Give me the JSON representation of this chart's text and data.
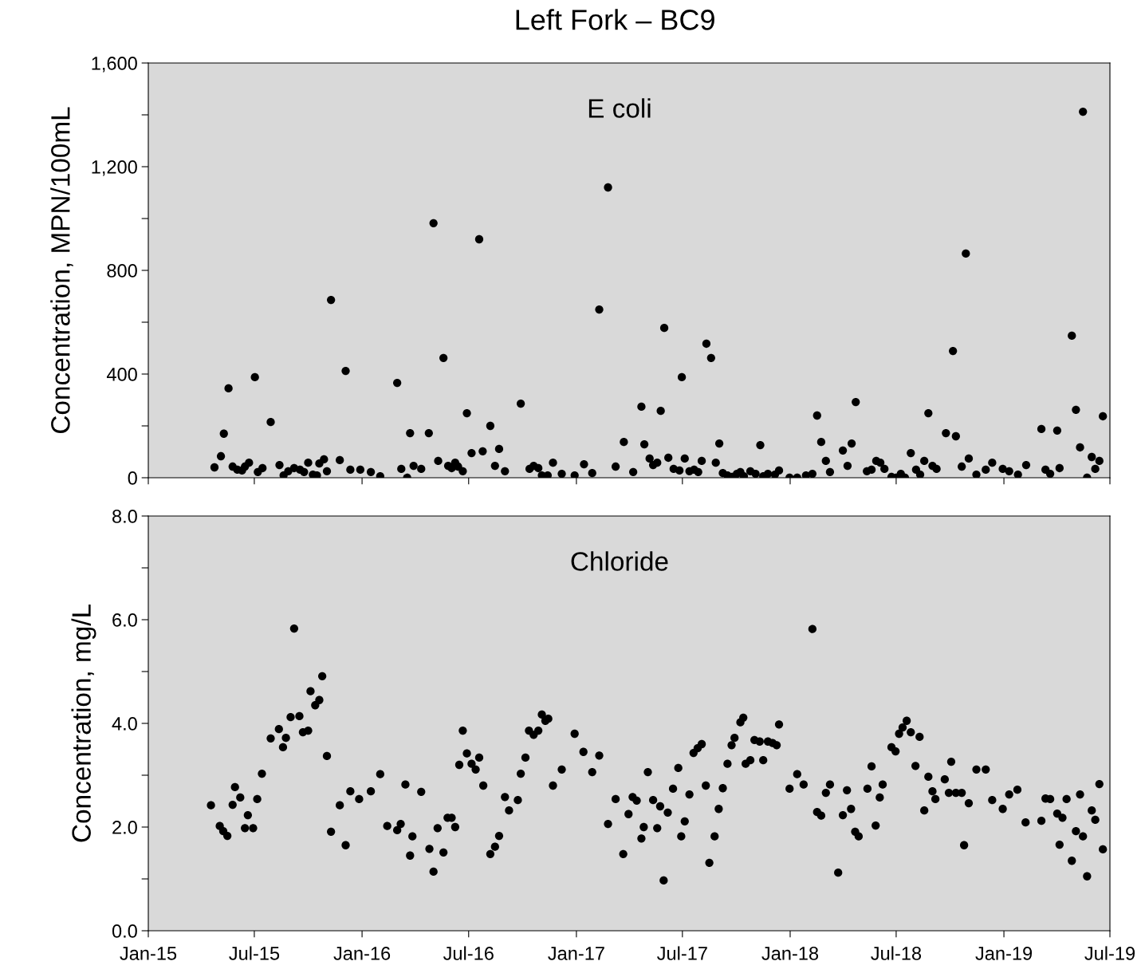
{
  "chart_data": [
    {
      "type": "scatter",
      "title": "Left Fork – BC9",
      "ylabel": "Concentration, MPN/100mL",
      "annotations": [
        "E coli"
      ],
      "marker": "circle",
      "grid": false,
      "tick_labels": "y",
      "xlim": [
        "2015-01-01",
        "2019-07-01"
      ],
      "xticks": [
        {
          "value": "2015-01-01",
          "label": null
        },
        {
          "value": "2015-07-01",
          "label": null
        },
        {
          "value": "2016-01-01",
          "label": null
        },
        {
          "value": "2016-07-01",
          "label": null
        },
        {
          "value": "2017-01-01",
          "label": null
        },
        {
          "value": "2017-07-01",
          "label": null
        },
        {
          "value": "2018-01-01",
          "label": null
        },
        {
          "value": "2018-07-01",
          "label": null
        },
        {
          "value": "2019-01-01",
          "label": null
        },
        {
          "value": "2019-07-01",
          "label": null
        }
      ],
      "ylim": [
        0,
        1600
      ],
      "yticks": [
        0,
        {
          "value": 200,
          "label": null
        },
        400,
        {
          "value": 600,
          "label": null
        },
        800,
        {
          "value": 1000,
          "label": null
        },
        {
          "value": 1200,
          "label": "1,200"
        },
        {
          "value": 1400,
          "label": null
        },
        {
          "value": 1600,
          "label": "1,600"
        }
      ],
      "series": [
        {
          "color": "#000000",
          "x": [
            "2015-04-24",
            "2015-05-05",
            "2015-05-10",
            "2015-05-18",
            "2015-05-25",
            "2015-06-02",
            "2015-06-10",
            "2015-06-15",
            "2015-06-22",
            "2015-07-02",
            "2015-07-07",
            "2015-07-15",
            "2015-07-29",
            "2015-08-13",
            "2015-08-20",
            "2015-08-28",
            "2015-09-07",
            "2015-09-17",
            "2015-09-24",
            "2015-10-01",
            "2015-10-09",
            "2015-10-16",
            "2015-10-20",
            "2015-10-28",
            "2015-11-02",
            "2015-11-09",
            "2015-11-24",
            "2015-12-04",
            "2015-12-12",
            "2015-12-29",
            "2016-01-16",
            "2016-02-01",
            "2016-03-01",
            "2016-03-08",
            "2016-03-18",
            "2016-03-23",
            "2016-03-29",
            "2016-04-11",
            "2016-04-24",
            "2016-05-02",
            "2016-05-10",
            "2016-05-19",
            "2016-05-27",
            "2016-06-02",
            "2016-06-08",
            "2016-06-13",
            "2016-06-21",
            "2016-06-28",
            "2016-07-06",
            "2016-07-19",
            "2016-07-25",
            "2016-08-07",
            "2016-08-15",
            "2016-08-22",
            "2016-09-01",
            "2016-09-28",
            "2016-10-13",
            "2016-10-20",
            "2016-10-28",
            "2016-11-03",
            "2016-11-13",
            "2016-11-22",
            "2016-12-07",
            "2016-12-29",
            "2017-01-14",
            "2017-01-28",
            "2017-02-09",
            "2017-02-24",
            "2017-03-09",
            "2017-03-23",
            "2017-04-08",
            "2017-04-22",
            "2017-04-27",
            "2017-05-06",
            "2017-05-12",
            "2017-05-19",
            "2017-05-25",
            "2017-05-31",
            "2017-06-07",
            "2017-06-16",
            "2017-06-26",
            "2017-06-30",
            "2017-07-05",
            "2017-07-13",
            "2017-07-21",
            "2017-07-28",
            "2017-08-03",
            "2017-08-11",
            "2017-08-19",
            "2017-08-27",
            "2017-09-02",
            "2017-09-08",
            "2017-09-16",
            "2017-09-24",
            "2017-10-02",
            "2017-10-08",
            "2017-10-14",
            "2017-10-25",
            "2017-11-03",
            "2017-11-11",
            "2017-11-16",
            "2017-11-24",
            "2017-12-06",
            "2017-12-13",
            "2017-12-31",
            "2018-01-13",
            "2018-01-28",
            "2018-02-08",
            "2018-02-16",
            "2018-02-23",
            "2018-03-03",
            "2018-03-10",
            "2018-04-01",
            "2018-04-09",
            "2018-04-16",
            "2018-04-23",
            "2018-05-12",
            "2018-05-20",
            "2018-05-28",
            "2018-06-04",
            "2018-06-11",
            "2018-06-23",
            "2018-07-01",
            "2018-07-09",
            "2018-07-16",
            "2018-07-26",
            "2018-08-04",
            "2018-08-11",
            "2018-08-18",
            "2018-08-25",
            "2018-09-01",
            "2018-09-08",
            "2018-09-24",
            "2018-10-06",
            "2018-10-11",
            "2018-10-21",
            "2018-10-28",
            "2018-11-02",
            "2018-11-15",
            "2018-12-01",
            "2018-12-12",
            "2018-12-30",
            "2019-01-10",
            "2019-01-25",
            "2019-02-08",
            "2019-03-06",
            "2019-03-13",
            "2019-03-21",
            "2019-04-02",
            "2019-04-06",
            "2019-04-27",
            "2019-05-04",
            "2019-05-11",
            "2019-05-16",
            "2019-05-23",
            "2019-05-31",
            "2019-06-06",
            "2019-06-13",
            "2019-06-19"
          ],
          "values": [
            40,
            83,
            170,
            345,
            43,
            31,
            28,
            43,
            58,
            388,
            22,
            37,
            215,
            49,
            9,
            25,
            37,
            31,
            22,
            58,
            12,
            9,
            55,
            71,
            25,
            686,
            68,
            412,
            31,
            31,
            22,
            6,
            366,
            34,
            0,
            172,
            46,
            34,
            172,
            982,
            65,
            462,
            46,
            37,
            58,
            43,
            25,
            249,
            95,
            920,
            102,
            200,
            46,
            111,
            25,
            286,
            34,
            46,
            37,
            9,
            9,
            58,
            15,
            9,
            52,
            18,
            649,
            1120,
            43,
            138,
            22,
            274,
            129,
            74,
            49,
            58,
            258,
            578,
            77,
            34,
            28,
            388,
            74,
            25,
            31,
            22,
            65,
            517,
            462,
            58,
            132,
            18,
            9,
            3,
            15,
            22,
            6,
            25,
            15,
            126,
            6,
            15,
            12,
            28,
            0,
            0,
            9,
            15,
            240,
            138,
            65,
            22,
            105,
            46,
            132,
            292,
            25,
            31,
            65,
            58,
            34,
            3,
            0,
            15,
            0,
            95,
            31,
            12,
            65,
            249,
            46,
            34,
            172,
            489,
            160,
            43,
            865,
            74,
            12,
            31,
            58,
            34,
            25,
            12,
            49,
            188,
            31,
            15,
            182,
            37,
            548,
            262,
            117,
            1412,
            0,
            80,
            34,
            65,
            237
          ]
        }
      ]
    },
    {
      "type": "scatter",
      "ylabel": "Concentration, mg/L",
      "annotations": [
        "Chloride"
      ],
      "marker": "circle",
      "grid": false,
      "xlim": [
        "2015-01-01",
        "2019-07-01"
      ],
      "xticks": [
        {
          "value": "2015-01-01",
          "label": "Jan-15"
        },
        {
          "value": "2015-07-01",
          "label": "Jul-15"
        },
        {
          "value": "2016-01-01",
          "label": "Jan-16"
        },
        {
          "value": "2016-07-01",
          "label": "Jul-16"
        },
        {
          "value": "2017-01-01",
          "label": "Jan-17"
        },
        {
          "value": "2017-07-01",
          "label": "Jul-17"
        },
        {
          "value": "2018-01-01",
          "label": "Jan-18"
        },
        {
          "value": "2018-07-01",
          "label": "Jul-18"
        },
        {
          "value": "2019-01-01",
          "label": "Jan-19"
        },
        {
          "value": "2019-07-01",
          "label": "Jul-19"
        }
      ],
      "ylim": [
        0,
        8
      ],
      "yticks": [
        {
          "value": 0,
          "label": "0.0"
        },
        {
          "value": 1,
          "label": null
        },
        {
          "value": 2,
          "label": "2.0"
        },
        {
          "value": 3,
          "label": null
        },
        {
          "value": 4,
          "label": "4.0"
        },
        {
          "value": 5,
          "label": null
        },
        {
          "value": 6,
          "label": "6.0"
        },
        {
          "value": 7,
          "label": null
        },
        {
          "value": 8,
          "label": "8.0"
        }
      ],
      "series": [
        {
          "color": "#000000",
          "x": [
            "2015-04-18",
            "2015-05-03",
            "2015-05-09",
            "2015-05-16",
            "2015-05-25",
            "2015-05-29",
            "2015-06-07",
            "2015-06-15",
            "2015-06-20",
            "2015-06-29",
            "2015-07-06",
            "2015-07-14",
            "2015-07-29",
            "2015-08-12",
            "2015-08-19",
            "2015-08-24",
            "2015-09-01",
            "2015-09-07",
            "2015-09-16",
            "2015-09-22",
            "2015-10-01",
            "2015-10-05",
            "2015-10-13",
            "2015-10-20",
            "2015-10-25",
            "2015-11-02",
            "2015-11-09",
            "2015-11-24",
            "2015-12-04",
            "2015-12-12",
            "2015-12-27",
            "2016-01-16",
            "2016-02-01",
            "2016-02-13",
            "2016-03-01",
            "2016-03-07",
            "2016-03-15",
            "2016-03-23",
            "2016-03-27",
            "2016-04-11",
            "2016-04-25",
            "2016-05-02",
            "2016-05-09",
            "2016-05-19",
            "2016-05-26",
            "2016-06-02",
            "2016-06-08",
            "2016-06-15",
            "2016-06-21",
            "2016-06-28",
            "2016-07-06",
            "2016-07-13",
            "2016-07-19",
            "2016-07-26",
            "2016-08-07",
            "2016-08-15",
            "2016-08-22",
            "2016-09-01",
            "2016-09-08",
            "2016-09-23",
            "2016-09-28",
            "2016-10-06",
            "2016-10-12",
            "2016-10-20",
            "2016-10-28",
            "2016-11-03",
            "2016-11-09",
            "2016-11-14",
            "2016-11-22",
            "2016-12-07",
            "2016-12-29",
            "2017-01-13",
            "2017-01-28",
            "2017-02-09",
            "2017-02-24",
            "2017-03-09",
            "2017-03-22",
            "2017-03-31",
            "2017-04-07",
            "2017-04-14",
            "2017-04-22",
            "2017-04-26",
            "2017-05-03",
            "2017-05-12",
            "2017-05-19",
            "2017-05-24",
            "2017-05-30",
            "2017-06-06",
            "2017-06-15",
            "2017-06-24",
            "2017-06-29",
            "2017-07-05",
            "2017-07-13",
            "2017-07-20",
            "2017-07-27",
            "2017-08-03",
            "2017-08-10",
            "2017-08-16",
            "2017-08-25",
            "2017-09-01",
            "2017-09-08",
            "2017-09-16",
            "2017-09-23",
            "2017-09-28",
            "2017-10-08",
            "2017-10-13",
            "2017-10-17",
            "2017-10-25",
            "2017-11-01",
            "2017-11-10",
            "2017-11-16",
            "2017-11-24",
            "2017-12-02",
            "2017-12-09",
            "2017-12-13",
            "2017-12-31",
            "2018-01-13",
            "2018-01-24",
            "2018-02-08",
            "2018-02-16",
            "2018-02-23",
            "2018-03-03",
            "2018-03-10",
            "2018-03-24",
            "2018-04-01",
            "2018-04-08",
            "2018-04-15",
            "2018-04-22",
            "2018-04-28",
            "2018-05-13",
            "2018-05-20",
            "2018-05-27",
            "2018-06-03",
            "2018-06-08",
            "2018-06-23",
            "2018-06-30",
            "2018-07-06",
            "2018-07-12",
            "2018-07-19",
            "2018-07-26",
            "2018-08-03",
            "2018-08-10",
            "2018-08-18",
            "2018-08-25",
            "2018-09-01",
            "2018-09-06",
            "2018-09-22",
            "2018-09-29",
            "2018-10-03",
            "2018-10-11",
            "2018-10-21",
            "2018-10-25",
            "2018-11-02",
            "2018-11-15",
            "2018-12-01",
            "2018-12-12",
            "2018-12-30",
            "2019-01-10",
            "2019-01-24",
            "2019-02-07",
            "2019-03-06",
            "2019-03-13",
            "2019-03-21",
            "2019-04-02",
            "2019-04-06",
            "2019-04-11",
            "2019-04-18",
            "2019-04-27",
            "2019-05-04",
            "2019-05-11",
            "2019-05-16",
            "2019-05-23",
            "2019-05-31",
            "2019-06-06",
            "2019-06-13",
            "2019-06-19"
          ],
          "values": [
            2.42,
            2.02,
            1.92,
            1.83,
            2.43,
            2.77,
            2.57,
            1.98,
            2.23,
            1.98,
            2.54,
            3.03,
            3.71,
            3.89,
            3.54,
            3.72,
            4.12,
            5.83,
            4.14,
            3.83,
            3.86,
            4.62,
            4.35,
            4.45,
            4.91,
            3.37,
            1.91,
            2.42,
            1.65,
            2.69,
            2.54,
            2.69,
            3.02,
            2.02,
            1.94,
            2.06,
            2.82,
            1.45,
            1.82,
            2.68,
            1.58,
            1.14,
            1.98,
            1.51,
            2.18,
            2.18,
            2.0,
            3.2,
            3.86,
            3.42,
            3.22,
            3.11,
            3.34,
            2.8,
            1.48,
            1.62,
            1.83,
            2.58,
            2.32,
            2.52,
            3.03,
            3.34,
            3.86,
            3.78,
            3.86,
            4.17,
            4.05,
            4.09,
            2.8,
            3.11,
            3.8,
            3.45,
            3.06,
            3.38,
            2.06,
            2.54,
            1.48,
            2.25,
            2.58,
            2.51,
            1.78,
            2.0,
            3.06,
            2.52,
            1.98,
            2.4,
            0.97,
            2.28,
            2.74,
            3.14,
            1.82,
            2.11,
            2.63,
            3.43,
            3.52,
            3.6,
            2.8,
            1.31,
            1.82,
            2.35,
            2.75,
            3.22,
            3.58,
            3.72,
            4.02,
            4.11,
            3.22,
            3.29,
            3.68,
            3.65,
            3.29,
            3.65,
            3.62,
            3.58,
            3.98,
            2.74,
            3.02,
            2.82,
            5.82,
            2.29,
            2.22,
            2.66,
            2.82,
            1.12,
            2.23,
            2.71,
            2.35,
            1.91,
            1.82,
            2.74,
            3.17,
            2.03,
            2.57,
            2.82,
            3.54,
            3.46,
            3.8,
            3.92,
            4.05,
            3.83,
            3.18,
            3.74,
            2.32,
            2.97,
            2.69,
            2.54,
            2.92,
            2.66,
            3.26,
            2.66,
            2.66,
            1.65,
            2.46,
            3.11,
            3.11,
            2.52,
            2.35,
            2.63,
            2.72,
            2.09,
            2.12,
            2.55,
            2.54,
            2.26,
            1.66,
            2.18,
            2.54,
            1.35,
            1.92,
            2.63,
            1.82,
            1.05,
            2.32,
            2.14,
            2.83,
            1.57
          ]
        }
      ]
    }
  ]
}
